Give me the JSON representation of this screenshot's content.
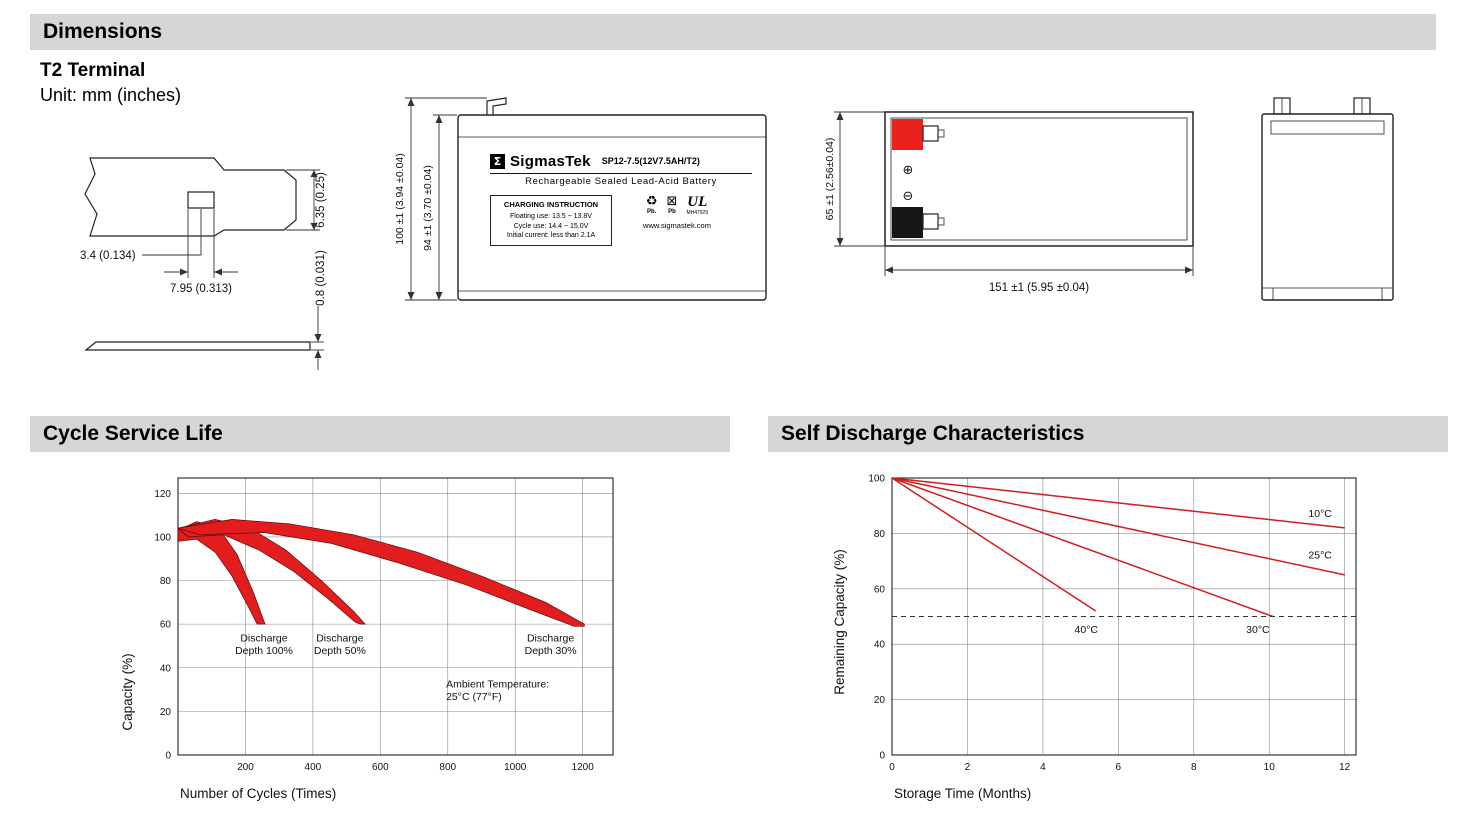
{
  "page": {
    "sections": {
      "dimensions": "Dimensions",
      "cycle": "Cycle Service Life",
      "self_discharge": "Self Discharge Characteristics"
    },
    "terminal_type": "T2 Terminal",
    "unit_note": "Unit: mm (inches)"
  },
  "terminal_detail": {
    "tab_height": "6.35 (0.25)",
    "tab_inner_width": "3.4 (0.134)",
    "tab_width": "7.95 (0.313)",
    "blade_thickness": "0.8 (0.031)"
  },
  "front_view": {
    "overall_height": "100 ±1 (3.94 ±0.04)",
    "container_height": "94 ±1 (3.70 ±0.04)"
  },
  "top_view": {
    "width": "65 ±1 (2.56±0.04)",
    "length": "151 ±1 (5.95 ±0.04)",
    "positive_symbol": "⊕",
    "negative_symbol": "⊖"
  },
  "battery_label": {
    "logo_glyph": "Σ",
    "brand": "SigmasTek",
    "model": "SP12-7.5(12V7.5AH/T2)",
    "type_line": "Rechargeable Sealed Lead-Acid Battery",
    "charging_title": "CHARGING INSTRUCTION",
    "charging_line1": "Floating use: 13.5 ~ 13.8V",
    "charging_line2": "Cycle use: 14.4 ~ 15.0V",
    "charging_line3": "Initial current: less than 2.1A",
    "recycle_icon_glyph": "♻",
    "bin_icon_glyph": "⊠",
    "pb1": "Pb.",
    "pb2": "Pb",
    "ul_text": "UL",
    "ul_code": "MH47929",
    "website": "www.sigmastek.com"
  },
  "chart_data": [
    {
      "type": "area",
      "title": "Cycle Service Life",
      "xlabel": "Number of Cycles (Times)",
      "ylabel": "Capacity (%)",
      "xlim": [
        0,
        1290
      ],
      "ylim": [
        0,
        127
      ],
      "xticks": [
        200,
        400,
        600,
        800,
        1000,
        1200
      ],
      "yticks": [
        0,
        20,
        40,
        60,
        80,
        100,
        120
      ],
      "grid": true,
      "legend": "none",
      "bands": [
        {
          "name": "Discharge Depth 100%",
          "upper": [
            [
              0,
              103
            ],
            [
              55,
              107
            ],
            [
              120,
              104
            ],
            [
              175,
              92
            ],
            [
              225,
              74
            ],
            [
              258,
              60
            ]
          ],
          "lower": [
            [
              0,
              98
            ],
            [
              55,
              99
            ],
            [
              110,
              93
            ],
            [
              160,
              82
            ],
            [
              205,
              69
            ],
            [
              235,
              60
            ]
          ]
        },
        {
          "name": "Discharge Depth 50%",
          "upper": [
            [
              0,
              104
            ],
            [
              110,
              108
            ],
            [
              215,
              104
            ],
            [
              320,
              94
            ],
            [
              425,
              80
            ],
            [
              520,
              66
            ],
            [
              555,
              60
            ]
          ],
          "lower": [
            [
              30,
              100
            ],
            [
              135,
              101
            ],
            [
              240,
              94
            ],
            [
              345,
              84
            ],
            [
              450,
              71
            ],
            [
              525,
              61
            ],
            [
              540,
              60
            ]
          ]
        },
        {
          "name": "Discharge Depth 30%",
          "upper": [
            [
              0,
              104
            ],
            [
              160,
              108
            ],
            [
              330,
              106
            ],
            [
              520,
              101
            ],
            [
              710,
              93
            ],
            [
              900,
              82
            ],
            [
              1090,
              70
            ],
            [
              1205,
              60
            ]
          ],
          "lower": [
            [
              65,
              101
            ],
            [
              255,
              102
            ],
            [
              455,
              97
            ],
            [
              655,
              88
            ],
            [
              855,
              78
            ],
            [
              1055,
              66
            ],
            [
              1175,
              59
            ],
            [
              1205,
              59
            ]
          ]
        }
      ],
      "annotations": [
        {
          "lines": [
            "Discharge",
            "Depth 100%"
          ],
          "x": 255,
          "y": 52,
          "anchor": "middle"
        },
        {
          "lines": [
            "Discharge",
            "Depth 50%"
          ],
          "x": 480,
          "y": 52,
          "anchor": "middle"
        },
        {
          "lines": [
            "Discharge",
            "Depth 30%"
          ],
          "x": 1105,
          "y": 52,
          "anchor": "middle"
        },
        {
          "lines": [
            "Ambient Temperature:",
            "25°C (77°F)"
          ],
          "x": 795,
          "y": 31,
          "anchor": "start"
        }
      ]
    },
    {
      "type": "line",
      "title": "Self Discharge Characteristics",
      "xlabel": "Storage Time (Months)",
      "ylabel": "Remaining Capacity (%)",
      "xlim": [
        0,
        12.3
      ],
      "ylim": [
        0,
        100
      ],
      "xticks": [
        0,
        2,
        4,
        6,
        8,
        10,
        12
      ],
      "yticks": [
        0,
        20,
        40,
        60,
        80,
        100
      ],
      "grid": true,
      "dashline_y": 50,
      "series": [
        {
          "name": "10°C",
          "points": [
            [
              0,
              100
            ],
            [
              12,
              82
            ]
          ]
        },
        {
          "name": "25°C",
          "points": [
            [
              0,
              100
            ],
            [
              12,
              65
            ]
          ]
        },
        {
          "name": "30°C",
          "points": [
            [
              0,
              100
            ],
            [
              10.1,
              50
            ]
          ]
        },
        {
          "name": "40°C",
          "points": [
            [
              0,
              100
            ],
            [
              5.4,
              52
            ]
          ]
        }
      ],
      "annotations": [
        {
          "lines": [
            "10°C"
          ],
          "x": 11.35,
          "y": 86,
          "anchor": "middle"
        },
        {
          "lines": [
            "25°C"
          ],
          "x": 11.35,
          "y": 71,
          "anchor": "middle"
        },
        {
          "lines": [
            "40°C"
          ],
          "x": 5.15,
          "y": 44,
          "anchor": "middle"
        },
        {
          "lines": [
            "30°C"
          ],
          "x": 9.7,
          "y": 44,
          "anchor": "middle"
        }
      ]
    }
  ]
}
